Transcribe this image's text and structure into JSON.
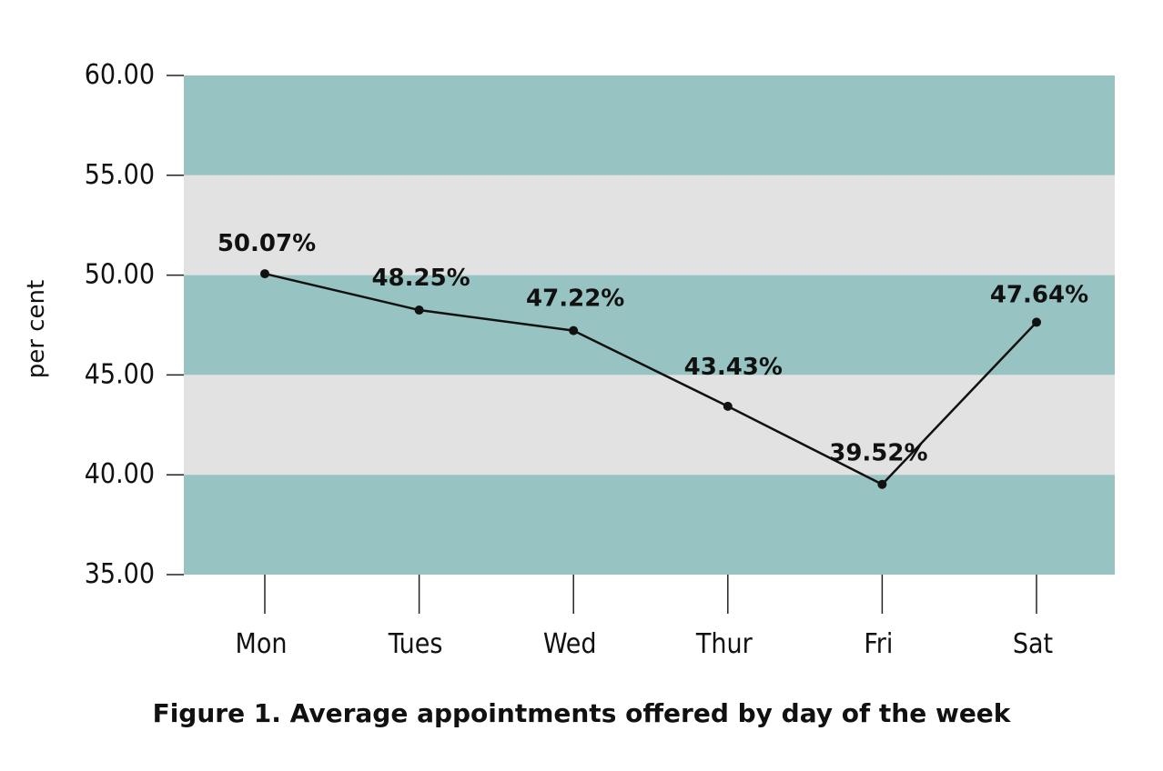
{
  "colors": {
    "band_dark": "#97c4c2",
    "band_light": "#e2e2e2",
    "line": "#111111",
    "axis": "#222222"
  },
  "chart_data": {
    "type": "line",
    "title": "Figure 1. Average appointments offered by day of the week",
    "xlabel": "",
    "ylabel": "per cent",
    "ylim": [
      35,
      60
    ],
    "yticks": [
      "60.00",
      "55.00",
      "50.00",
      "45.00",
      "40.00",
      "35.00"
    ],
    "ytick_values": [
      60,
      55,
      50,
      45,
      40,
      35
    ],
    "categories": [
      "Mon",
      "Tues",
      "Wed",
      "Thur",
      "Fri",
      "Sat"
    ],
    "series": [
      {
        "values": [
          50.07,
          48.25,
          47.22,
          43.43,
          39.52,
          47.64
        ],
        "labels": [
          "50.07%",
          "48.25%",
          "47.22%",
          "43.43%",
          "39.52%",
          "47.64%"
        ]
      }
    ],
    "bands": [
      {
        "from": 55,
        "to": 60,
        "color": "band_dark"
      },
      {
        "from": 50,
        "to": 55,
        "color": "band_light"
      },
      {
        "from": 45,
        "to": 50,
        "color": "band_dark"
      },
      {
        "from": 40,
        "to": 45,
        "color": "band_light"
      },
      {
        "from": 35,
        "to": 40,
        "color": "band_dark"
      }
    ],
    "grid": false,
    "legend": "none"
  }
}
